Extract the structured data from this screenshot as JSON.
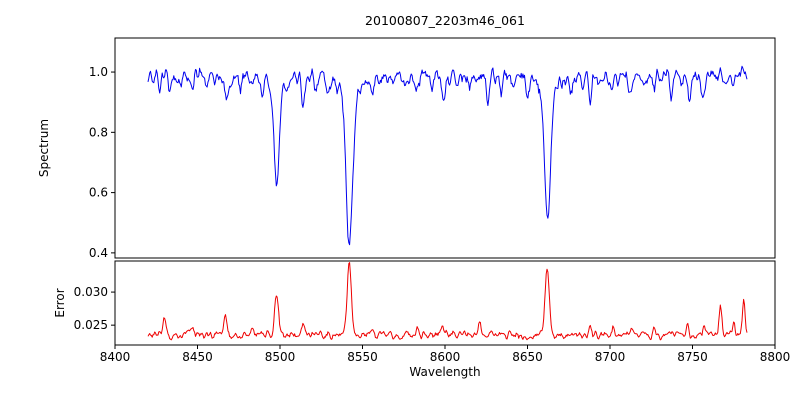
{
  "chart_data": [
    {
      "type": "line",
      "name": "spectrum",
      "title": "20100807_2203m46_061",
      "ylabel": "Spectrum",
      "color": "#0000ee",
      "xlim": [
        8400,
        8800
      ],
      "ylim": [
        0.383,
        1.113
      ],
      "xtick_values": [
        8400,
        8450,
        8500,
        8550,
        8600,
        8650,
        8700,
        8750,
        8800
      ],
      "xtick_labels": [
        "8400",
        "8450",
        "8500",
        "8550",
        "8600",
        "8650",
        "8700",
        "8750",
        "8800"
      ],
      "ytick_values": [
        0.4,
        0.6,
        0.8,
        1.0
      ],
      "ytick_labels": [
        "0.4",
        "0.6",
        "0.8",
        "1.0"
      ],
      "x_start": 8420,
      "x_end": 8783,
      "n_points": 720,
      "base": 0.985,
      "noise_amplitude": 0.04,
      "noise_seed": 20100807,
      "absorption_lines": [
        {
          "center": 8498.0,
          "depth": 0.335,
          "width": 1.4
        },
        {
          "center": 8498.0,
          "depth": 0.05,
          "width": 5
        },
        {
          "center": 8542.1,
          "depth": 0.505,
          "width": 1.9
        },
        {
          "center": 8542.1,
          "depth": 0.06,
          "width": 7
        },
        {
          "center": 8662.1,
          "depth": 0.43,
          "width": 1.7
        },
        {
          "center": 8662.1,
          "depth": 0.055,
          "width": 6
        },
        {
          "center": 8427,
          "depth": 0.04,
          "width": 0.8
        },
        {
          "center": 8433,
          "depth": 0.055,
          "width": 0.9
        },
        {
          "center": 8440,
          "depth": 0.035,
          "width": 0.8
        },
        {
          "center": 8447,
          "depth": 0.06,
          "width": 0.9
        },
        {
          "center": 8455,
          "depth": 0.04,
          "width": 0.8
        },
        {
          "center": 8468,
          "depth": 0.09,
          "width": 1.0
        },
        {
          "center": 8476,
          "depth": 0.04,
          "width": 0.8
        },
        {
          "center": 8489,
          "depth": 0.05,
          "width": 0.8
        },
        {
          "center": 8514,
          "depth": 0.085,
          "width": 1.0
        },
        {
          "center": 8522,
          "depth": 0.045,
          "width": 0.8
        },
        {
          "center": 8529,
          "depth": 0.04,
          "width": 0.8
        },
        {
          "center": 8556,
          "depth": 0.05,
          "width": 0.9
        },
        {
          "center": 8565,
          "depth": 0.04,
          "width": 0.8
        },
        {
          "center": 8583,
          "depth": 0.055,
          "width": 0.9
        },
        {
          "center": 8592,
          "depth": 0.04,
          "width": 0.8
        },
        {
          "center": 8599,
          "depth": 0.075,
          "width": 1.0
        },
        {
          "center": 8607,
          "depth": 0.04,
          "width": 0.8
        },
        {
          "center": 8615,
          "depth": 0.05,
          "width": 0.8
        },
        {
          "center": 8626,
          "depth": 0.085,
          "width": 1.0
        },
        {
          "center": 8634,
          "depth": 0.045,
          "width": 0.8
        },
        {
          "center": 8642,
          "depth": 0.04,
          "width": 0.8
        },
        {
          "center": 8650,
          "depth": 0.045,
          "width": 0.8
        },
        {
          "center": 8676,
          "depth": 0.055,
          "width": 0.9
        },
        {
          "center": 8683,
          "depth": 0.04,
          "width": 0.8
        },
        {
          "center": 8688,
          "depth": 0.08,
          "width": 1.0
        },
        {
          "center": 8695,
          "depth": 0.04,
          "width": 0.8
        },
        {
          "center": 8701,
          "depth": 0.05,
          "width": 0.8
        },
        {
          "center": 8712,
          "depth": 0.065,
          "width": 0.9
        },
        {
          "center": 8720,
          "depth": 0.04,
          "width": 0.8
        },
        {
          "center": 8727,
          "depth": 0.05,
          "width": 0.8
        },
        {
          "center": 8737,
          "depth": 0.055,
          "width": 0.9
        },
        {
          "center": 8748,
          "depth": 0.07,
          "width": 0.9
        },
        {
          "center": 8756,
          "depth": 0.06,
          "width": 0.9
        },
        {
          "center": 8775,
          "depth": 0.045,
          "width": 0.8
        }
      ],
      "peaks": [
        {
          "center": 8767,
          "height": 0.055,
          "width": 0.7
        },
        {
          "center": 8780,
          "height": 0.04,
          "width": 0.6
        }
      ]
    },
    {
      "type": "line",
      "name": "error",
      "ylabel": "Error",
      "xlabel": "Wavelength",
      "color": "#ee0000",
      "xlim": [
        8400,
        8800
      ],
      "ylim": [
        0.022,
        0.0347
      ],
      "xtick_values": [
        8400,
        8450,
        8500,
        8550,
        8600,
        8650,
        8700,
        8750,
        8800
      ],
      "xtick_labels": [
        "8400",
        "8450",
        "8500",
        "8550",
        "8600",
        "8650",
        "8700",
        "8750",
        "8800"
      ],
      "ytick_values": [
        0.025,
        0.03
      ],
      "ytick_labels": [
        "0.025",
        "0.030"
      ],
      "x_start": 8420,
      "x_end": 8783,
      "n_points": 720,
      "base": 0.0235,
      "noise_amplitude": 0.0009,
      "noise_seed": 2203,
      "peaks": [
        {
          "center": 8430,
          "height": 0.003,
          "width": 0.9
        },
        {
          "center": 8447,
          "height": 0.0014,
          "width": 0.8
        },
        {
          "center": 8467,
          "height": 0.0028,
          "width": 0.9
        },
        {
          "center": 8483,
          "height": 0.001,
          "width": 0.8
        },
        {
          "center": 8498,
          "height": 0.0062,
          "width": 1.2
        },
        {
          "center": 8514,
          "height": 0.0018,
          "width": 0.9
        },
        {
          "center": 8542,
          "height": 0.0105,
          "width": 1.3
        },
        {
          "center": 8556,
          "height": 0.0009,
          "width": 0.8
        },
        {
          "center": 8583,
          "height": 0.001,
          "width": 0.8
        },
        {
          "center": 8598,
          "height": 0.0014,
          "width": 0.8
        },
        {
          "center": 8621,
          "height": 0.0016,
          "width": 0.8
        },
        {
          "center": 8640,
          "height": 0.0009,
          "width": 0.8
        },
        {
          "center": 8662,
          "height": 0.0098,
          "width": 1.3
        },
        {
          "center": 8688,
          "height": 0.0014,
          "width": 0.8
        },
        {
          "center": 8702,
          "height": 0.001,
          "width": 0.8
        },
        {
          "center": 8713,
          "height": 0.0013,
          "width": 0.8
        },
        {
          "center": 8727,
          "height": 0.001,
          "width": 0.8
        },
        {
          "center": 8736,
          "height": 0.0011,
          "width": 0.8
        },
        {
          "center": 8747,
          "height": 0.0015,
          "width": 0.8
        },
        {
          "center": 8757,
          "height": 0.0017,
          "width": 0.8
        },
        {
          "center": 8767,
          "height": 0.0042,
          "width": 0.9
        },
        {
          "center": 8775,
          "height": 0.002,
          "width": 0.8
        },
        {
          "center": 8781,
          "height": 0.0052,
          "width": 0.8
        }
      ]
    }
  ]
}
